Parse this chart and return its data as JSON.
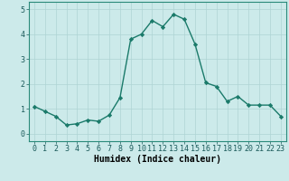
{
  "x": [
    0,
    1,
    2,
    3,
    4,
    5,
    6,
    7,
    8,
    9,
    10,
    11,
    12,
    13,
    14,
    15,
    16,
    17,
    18,
    19,
    20,
    21,
    22,
    23
  ],
  "y": [
    1.1,
    0.9,
    0.7,
    0.35,
    0.4,
    0.55,
    0.5,
    0.75,
    1.45,
    3.8,
    4.0,
    4.55,
    4.3,
    4.8,
    4.6,
    3.6,
    2.05,
    1.9,
    1.3,
    1.5,
    1.15,
    1.15,
    1.15,
    0.7
  ],
  "line_color": "#1a7a6a",
  "marker": "D",
  "marker_size": 2.2,
  "background_color": "#cceaea",
  "grid_color": "#aed4d4",
  "xlabel": "Humidex (Indice chaleur)",
  "xlabel_fontsize": 7,
  "xlim": [
    -0.5,
    23.5
  ],
  "ylim": [
    -0.3,
    5.3
  ],
  "yticks": [
    0,
    1,
    2,
    3,
    4,
    5
  ],
  "xticks": [
    0,
    1,
    2,
    3,
    4,
    5,
    6,
    7,
    8,
    9,
    10,
    11,
    12,
    13,
    14,
    15,
    16,
    17,
    18,
    19,
    20,
    21,
    22,
    23
  ],
  "tick_fontsize": 6,
  "line_width": 1.0
}
